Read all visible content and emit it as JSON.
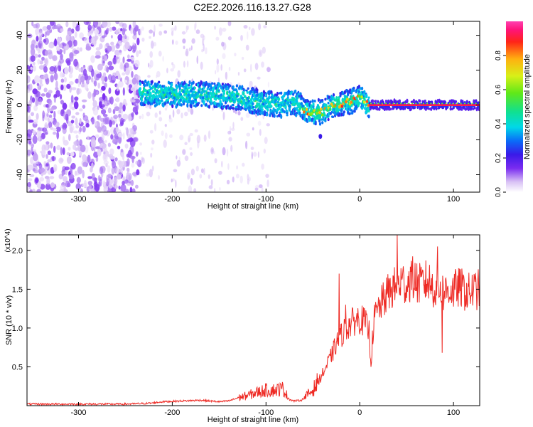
{
  "title": "C2E2.2026.116.13.27.G28",
  "colors": {
    "snr_line": "#ee2a24",
    "pixel_scale_low": "#7a2cf0",
    "ridge": "#ff2418"
  },
  "chart_data": [
    {
      "type": "heatmap",
      "name": "spectrogram",
      "title": "C2E2.2026.116.13.27.G28",
      "xlabel": "Height of straight line (km)",
      "ylabel": "Frequency (Hz)",
      "xlim": [
        -355,
        128
      ],
      "ylim": [
        -50,
        48
      ],
      "xticks": [
        -300,
        -200,
        -100,
        0,
        100
      ],
      "xtick_labels": [
        "-300",
        "-200",
        "-100",
        "0",
        "100"
      ],
      "yticks": [
        -40,
        -20,
        0,
        20,
        40
      ],
      "ytick_labels": [
        "-40",
        "-20",
        "0",
        "20",
        "40"
      ],
      "colorbar": {
        "label": "Normalized spectral amplitude",
        "range": [
          0,
          1
        ],
        "ticks": [
          0.0,
          0.2,
          0.4,
          0.6,
          0.8
        ],
        "tick_labels": [
          "0.0",
          "0.2",
          "0.4",
          "0.6",
          "0.8"
        ],
        "colormap": [
          "#ffffff",
          "#d9c2f5",
          "#7a2cf0",
          "#3a1ae8",
          "#0a6cf8",
          "#00d8e8",
          "#10e090",
          "#60e818",
          "#d8f018",
          "#ffb010",
          "#ff2418",
          "#ff1478",
          "#ff40b0"
        ]
      },
      "features": {
        "noise_region_x": [
          -355,
          -235
        ],
        "signal_onset_x": -235,
        "ridge": [
          {
            "x": -235,
            "y": 7
          },
          {
            "x": -200,
            "y": 6
          },
          {
            "x": -165,
            "y": 6
          },
          {
            "x": -140,
            "y": 5
          },
          {
            "x": -120,
            "y": 3
          },
          {
            "x": -100,
            "y": 1
          },
          {
            "x": -85,
            "y": 0
          },
          {
            "x": -70,
            "y": 2
          },
          {
            "x": -55,
            "y": -4
          },
          {
            "x": -40,
            "y": -4
          },
          {
            "x": -30,
            "y": 0
          },
          {
            "x": -10,
            "y": 2
          },
          {
            "x": 0,
            "y": 4
          },
          {
            "x": 10,
            "y": 0
          },
          {
            "x": 128,
            "y": 0
          }
        ]
      }
    },
    {
      "type": "line",
      "name": "snr",
      "xlabel": "Height of straight line (km)",
      "ylabel": "SNR (10 * v/v)",
      "yscale_label": "(x10^4)",
      "xlim": [
        -355,
        128
      ],
      "ylim": [
        0,
        2.2
      ],
      "xticks": [
        -300,
        -200,
        -100,
        0,
        100
      ],
      "xtick_labels": [
        "-300",
        "-200",
        "-100",
        "0",
        "100"
      ],
      "yticks": [
        0.5,
        1.0,
        1.5,
        2.0
      ],
      "ytick_labels": [
        "0.5",
        "1.0",
        "1.5",
        "2.0"
      ],
      "series": [
        {
          "name": "SNR",
          "x": [
            -355,
            -300,
            -250,
            -225,
            -210,
            -190,
            -170,
            -150,
            -140,
            -130,
            -120,
            -110,
            -100,
            -90,
            -82,
            -75,
            -70,
            -62,
            -55,
            -50,
            -45,
            -40,
            -35,
            -30,
            -25,
            -20,
            -15,
            -10,
            -5,
            0,
            5,
            10,
            12,
            15,
            20,
            25,
            30,
            35,
            40,
            45,
            50,
            55,
            60,
            65,
            70,
            75,
            80,
            85,
            90,
            95,
            100,
            105,
            110,
            115,
            120,
            128
          ],
          "values": [
            0.02,
            0.02,
            0.02,
            0.03,
            0.05,
            0.06,
            0.07,
            0.05,
            0.06,
            0.1,
            0.13,
            0.17,
            0.2,
            0.2,
            0.22,
            0.08,
            0.06,
            0.07,
            0.15,
            0.2,
            0.3,
            0.4,
            0.52,
            0.65,
            0.8,
            0.9,
            1.0,
            1.05,
            1.1,
            1.12,
            1.08,
            0.95,
            0.55,
            1.1,
            1.25,
            1.35,
            1.45,
            1.5,
            1.55,
            1.6,
            1.55,
            1.65,
            1.6,
            1.55,
            1.6,
            1.58,
            1.5,
            1.52,
            1.45,
            1.5,
            1.48,
            1.52,
            1.5,
            1.45,
            1.48,
            1.5
          ],
          "spikes": [
            {
              "x": -22,
              "y": 1.7
            },
            {
              "x": -15,
              "y": 1.3
            },
            {
              "x": 40,
              "y": 2.2
            },
            {
              "x": 83,
              "y": 2.05
            },
            {
              "x": 88,
              "y": 0.68
            },
            {
              "x": 12,
              "y": 0.5
            }
          ]
        }
      ]
    }
  ]
}
